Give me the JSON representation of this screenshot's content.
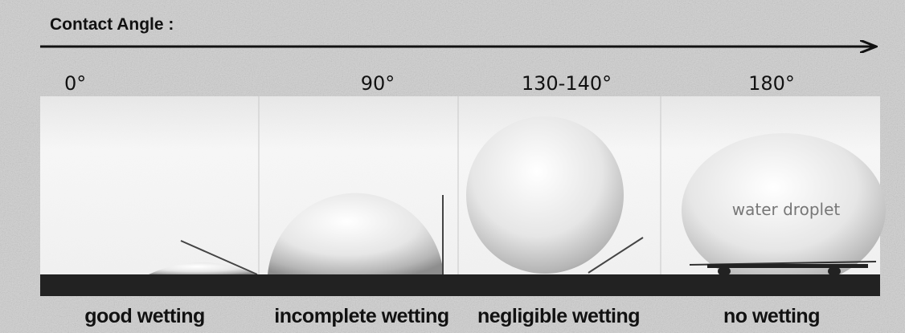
{
  "header": {
    "title": "Contact Angle :"
  },
  "panels": [
    {
      "angle": "0°",
      "label": "good wetting"
    },
    {
      "angle": "90°",
      "label": "incomplete wetting"
    },
    {
      "angle": "130-140°",
      "label": "negligible wetting"
    },
    {
      "angle": "180°",
      "label": "no wetting"
    }
  ],
  "annotation": "water droplet"
}
